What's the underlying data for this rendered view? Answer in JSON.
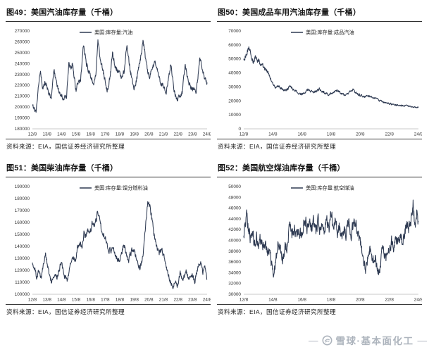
{
  "page": {
    "background": "#ffffff"
  },
  "watermark": {
    "dash_left": "—",
    "dash_right": "—",
    "logo": "xueqiu-snowball-icon",
    "text": "雪球·基本面化工",
    "color": "#a7aeb8"
  },
  "source_note": "资料来源：EIA，国信证券经济研究所整理",
  "chart_data": [
    {
      "type": "line",
      "title": "图49：美国汽油库存量（千桶）",
      "legend": "美国:库存量:汽油",
      "source": "资料来源：EIA，国信证券经济研究所整理",
      "line_color": "#2e3a52",
      "ylim": [
        180000,
        270000
      ],
      "y_step": 10000,
      "x_ticks": [
        "12/8",
        "13/8",
        "14/8",
        "15/8",
        "16/8",
        "17/8",
        "18/8",
        "19/8",
        "20/8",
        "21/8",
        "22/8",
        "23/8",
        "24/8"
      ],
      "x_tick_years": [
        0,
        1,
        2,
        3,
        4,
        5,
        6,
        7,
        8,
        9,
        10,
        11,
        12
      ],
      "noise_rel": 0.01,
      "seed": 49,
      "points": [
        [
          0,
          202000
        ],
        [
          0.12,
          199000
        ],
        [
          0.25,
          196000
        ],
        [
          0.45,
          222000
        ],
        [
          0.55,
          234000
        ],
        [
          0.7,
          217000
        ],
        [
          0.85,
          223000
        ],
        [
          1.0,
          218000
        ],
        [
          1.15,
          211000
        ],
        [
          1.3,
          209500
        ],
        [
          1.5,
          235000
        ],
        [
          1.65,
          221000
        ],
        [
          1.85,
          212000
        ],
        [
          2.0,
          211000
        ],
        [
          2.15,
          206000
        ],
        [
          2.35,
          211000
        ],
        [
          2.5,
          240000
        ],
        [
          2.65,
          233000
        ],
        [
          2.75,
          241500
        ],
        [
          2.9,
          224000
        ],
        [
          3.0,
          215500
        ],
        [
          3.1,
          221000
        ],
        [
          3.3,
          224000
        ],
        [
          3.5,
          258000
        ],
        [
          3.7,
          240000
        ],
        [
          3.9,
          231500
        ],
        [
          4.05,
          226500
        ],
        [
          4.2,
          222000
        ],
        [
          4.35,
          228000
        ],
        [
          4.5,
          259000
        ],
        [
          4.7,
          241000
        ],
        [
          4.9,
          230000
        ],
        [
          5.05,
          220000
        ],
        [
          5.15,
          216000
        ],
        [
          5.35,
          228000
        ],
        [
          5.5,
          249000
        ],
        [
          5.7,
          238000
        ],
        [
          5.9,
          232500
        ],
        [
          6.1,
          226000
        ],
        [
          6.3,
          233000
        ],
        [
          6.5,
          258000
        ],
        [
          6.7,
          235000
        ],
        [
          6.9,
          222000
        ],
        [
          7.0,
          217000
        ],
        [
          7.2,
          228000
        ],
        [
          7.45,
          247000
        ],
        [
          7.6,
          262000
        ],
        [
          7.75,
          247000
        ],
        [
          7.9,
          234000
        ],
        [
          8.05,
          227000
        ],
        [
          8.25,
          236000
        ],
        [
          8.45,
          241000
        ],
        [
          8.65,
          231000
        ],
        [
          8.85,
          221000
        ],
        [
          9.0,
          219000
        ],
        [
          9.2,
          213000
        ],
        [
          9.5,
          240000
        ],
        [
          9.7,
          218000
        ],
        [
          9.9,
          206000
        ],
        [
          10.1,
          209000
        ],
        [
          10.3,
          214000
        ],
        [
          10.5,
          240000
        ],
        [
          10.7,
          223000
        ],
        [
          10.9,
          217000
        ],
        [
          11.1,
          216000
        ],
        [
          11.25,
          213000
        ],
        [
          11.5,
          246000
        ],
        [
          11.7,
          232000
        ],
        [
          11.85,
          225000
        ],
        [
          12.0,
          223500
        ]
      ]
    },
    {
      "type": "line",
      "title": "图50：美国成品车用汽油库存量（千桶）",
      "legend": "美国:库存量:成品汽油",
      "source": "资料来源：EIA，国信证券经济研究所整理",
      "line_color": "#2e3a52",
      "ylim": [
        0,
        70000
      ],
      "y_step": 10000,
      "x_ticks": [
        "12/8",
        "14/8",
        "16/8",
        "18/8",
        "20/8",
        "22/8",
        "24/8"
      ],
      "x_tick_years": [
        0,
        2,
        4,
        6,
        8,
        10,
        12
      ],
      "noise_rel": 0.03,
      "seed": 50,
      "points": [
        [
          0,
          50000
        ],
        [
          0.15,
          52500
        ],
        [
          0.35,
          59000
        ],
        [
          0.5,
          52000
        ],
        [
          0.65,
          47500
        ],
        [
          0.8,
          51000
        ],
        [
          1.0,
          49000
        ],
        [
          1.2,
          46000
        ],
        [
          1.4,
          43500
        ],
        [
          1.6,
          41500
        ],
        [
          1.75,
          38500
        ],
        [
          1.9,
          34500
        ],
        [
          2.05,
          30500
        ],
        [
          2.2,
          29500
        ],
        [
          2.4,
          30500
        ],
        [
          2.6,
          28500
        ],
        [
          2.8,
          27500
        ],
        [
          3.0,
          28000
        ],
        [
          3.2,
          31000
        ],
        [
          3.4,
          28000
        ],
        [
          3.6,
          27000
        ],
        [
          3.8,
          25500
        ],
        [
          4.0,
          25000
        ],
        [
          4.2,
          26500
        ],
        [
          4.4,
          28500
        ],
        [
          4.6,
          27000
        ],
        [
          4.8,
          26000
        ],
        [
          5.0,
          27000
        ],
        [
          5.2,
          28500
        ],
        [
          5.4,
          26500
        ],
        [
          5.6,
          25500
        ],
        [
          5.8,
          24500
        ],
        [
          6.0,
          25500
        ],
        [
          6.2,
          27000
        ],
        [
          6.5,
          27500
        ],
        [
          6.7,
          25000
        ],
        [
          7.0,
          24000
        ],
        [
          7.2,
          25500
        ],
        [
          7.5,
          28000
        ],
        [
          7.7,
          26000
        ],
        [
          8.0,
          24000
        ],
        [
          8.3,
          23000
        ],
        [
          8.6,
          23500
        ],
        [
          9.0,
          22000
        ],
        [
          9.3,
          20500
        ],
        [
          9.6,
          19000
        ],
        [
          10.0,
          18000
        ],
        [
          10.3,
          17500
        ],
        [
          10.6,
          17000
        ],
        [
          11.0,
          16500
        ],
        [
          11.4,
          16000
        ],
        [
          11.7,
          15500
        ],
        [
          12.0,
          15500
        ]
      ]
    },
    {
      "type": "line",
      "title": "图51：美国柴油库存量（千桶）",
      "legend": "美国:库存量:馏分燃料油",
      "source": "资料来源：EIA，国信证券经济研究所整理",
      "line_color": "#2e3a52",
      "ylim": [
        100000,
        190000
      ],
      "y_step": 10000,
      "x_ticks": [
        "12/8",
        "13/8",
        "14/8",
        "15/8",
        "16/8",
        "17/8",
        "18/8",
        "19/8",
        "20/8",
        "21/8",
        "22/8",
        "23/8",
        "24/8"
      ],
      "x_tick_years": [
        0,
        1,
        2,
        3,
        4,
        5,
        6,
        7,
        8,
        9,
        10,
        11,
        12
      ],
      "noise_rel": 0.016,
      "seed": 51,
      "points": [
        [
          0,
          128000
        ],
        [
          0.15,
          121000
        ],
        [
          0.3,
          114000
        ],
        [
          0.45,
          120000
        ],
        [
          0.6,
          113000
        ],
        [
          0.75,
          125000
        ],
        [
          0.9,
          133000
        ],
        [
          1.0,
          126000
        ],
        [
          1.15,
          117000
        ],
        [
          1.3,
          111500
        ],
        [
          1.5,
          117000
        ],
        [
          1.7,
          113000
        ],
        [
          1.9,
          124000
        ],
        [
          2.0,
          127000
        ],
        [
          2.2,
          115000
        ],
        [
          2.4,
          112000
        ],
        [
          2.6,
          124000
        ],
        [
          2.8,
          131000
        ],
        [
          2.95,
          129000
        ],
        [
          3.1,
          139000
        ],
        [
          3.25,
          143000
        ],
        [
          3.4,
          138000
        ],
        [
          3.55,
          152000
        ],
        [
          3.7,
          148000
        ],
        [
          3.85,
          155000
        ],
        [
          4.0,
          153000
        ],
        [
          4.1,
          162000
        ],
        [
          4.25,
          157000
        ],
        [
          4.4,
          164000
        ],
        [
          4.5,
          170000
        ],
        [
          4.65,
          160000
        ],
        [
          4.8,
          151000
        ],
        [
          5.0,
          149000
        ],
        [
          5.2,
          139000
        ],
        [
          5.4,
          135000
        ],
        [
          5.55,
          141000
        ],
        [
          5.7,
          133000
        ],
        [
          5.9,
          127000
        ],
        [
          6.05,
          131000
        ],
        [
          6.25,
          142000
        ],
        [
          6.45,
          133000
        ],
        [
          6.6,
          127000
        ],
        [
          6.8,
          136000
        ],
        [
          7.0,
          136000
        ],
        [
          7.2,
          127000
        ],
        [
          7.4,
          122000
        ],
        [
          7.6,
          132000
        ],
        [
          7.8,
          160000
        ],
        [
          7.95,
          178000
        ],
        [
          8.1,
          172000
        ],
        [
          8.3,
          155000
        ],
        [
          8.5,
          142000
        ],
        [
          8.7,
          133000
        ],
        [
          8.9,
          138000
        ],
        [
          9.05,
          130000
        ],
        [
          9.25,
          121000
        ],
        [
          9.45,
          111000
        ],
        [
          9.65,
          107000
        ],
        [
          9.85,
          110000
        ],
        [
          9.95,
          106000
        ],
        [
          10.15,
          118000
        ],
        [
          10.35,
          113000
        ],
        [
          10.55,
          120000
        ],
        [
          10.75,
          112000
        ],
        [
          10.95,
          117000
        ],
        [
          11.15,
          110000
        ],
        [
          11.35,
          122000
        ],
        [
          11.55,
          127000
        ],
        [
          11.7,
          118000
        ],
        [
          11.85,
          123000
        ],
        [
          11.95,
          117000
        ],
        [
          12.0,
          112000
        ]
      ]
    },
    {
      "type": "line",
      "title": "图52：美国航空煤油库存量（千桶）",
      "legend": "美国:库存量:航空煤油",
      "source": "资料来源：EIA，国信证券经济研究所整理",
      "line_color": "#2e3a52",
      "ylim": [
        30000,
        50000
      ],
      "y_step": 2000,
      "x_ticks": [
        "12/8",
        "14/8",
        "16/8",
        "18/8",
        "20/8",
        "22/8",
        "24/8"
      ],
      "x_tick_years": [
        0,
        2,
        4,
        6,
        8,
        10,
        12
      ],
      "noise_rel": 0.026,
      "seed": 52,
      "points": [
        [
          0,
          41500
        ],
        [
          0.1,
          43200
        ],
        [
          0.2,
          44500
        ],
        [
          0.35,
          42000
        ],
        [
          0.5,
          40000
        ],
        [
          0.62,
          41500
        ],
        [
          0.75,
          39500
        ],
        [
          0.88,
          40500
        ],
        [
          1.0,
          39500
        ],
        [
          1.15,
          40500
        ],
        [
          1.3,
          38500
        ],
        [
          1.45,
          39500
        ],
        [
          1.6,
          37500
        ],
        [
          1.75,
          38500
        ],
        [
          1.9,
          35800
        ],
        [
          2.05,
          34300
        ],
        [
          2.25,
          37000
        ],
        [
          2.4,
          39800
        ],
        [
          2.55,
          38000
        ],
        [
          2.7,
          36500
        ],
        [
          2.85,
          38500
        ],
        [
          3.0,
          38500
        ],
        [
          3.15,
          43800
        ],
        [
          3.3,
          41500
        ],
        [
          3.45,
          42500
        ],
        [
          3.6,
          40500
        ],
        [
          3.75,
          42000
        ],
        [
          3.9,
          41000
        ],
        [
          4.05,
          42500
        ],
        [
          4.2,
          44500
        ],
        [
          4.35,
          42000
        ],
        [
          4.5,
          43500
        ],
        [
          4.65,
          41500
        ],
        [
          4.8,
          43000
        ],
        [
          4.95,
          41500
        ],
        [
          5.1,
          43500
        ],
        [
          5.25,
          42000
        ],
        [
          5.4,
          43500
        ],
        [
          5.55,
          41500
        ],
        [
          5.7,
          43800
        ],
        [
          5.85,
          42000
        ],
        [
          6.0,
          45300
        ],
        [
          6.15,
          42500
        ],
        [
          6.3,
          44000
        ],
        [
          6.45,
          41500
        ],
        [
          6.6,
          42500
        ],
        [
          6.75,
          40500
        ],
        [
          6.9,
          42000
        ],
        [
          7.05,
          41200
        ],
        [
          7.2,
          43300
        ],
        [
          7.35,
          41000
        ],
        [
          7.5,
          42500
        ],
        [
          7.65,
          43800
        ],
        [
          7.8,
          41500
        ],
        [
          7.95,
          40000
        ],
        [
          8.1,
          38500
        ],
        [
          8.25,
          35800
        ],
        [
          8.4,
          34300
        ],
        [
          8.55,
          37200
        ],
        [
          8.7,
          38500
        ],
        [
          8.85,
          36500
        ],
        [
          9.0,
          37000
        ],
        [
          9.12,
          35500
        ],
        [
          9.25,
          33800
        ],
        [
          9.4,
          36000
        ],
        [
          9.55,
          38500
        ],
        [
          9.7,
          37500
        ],
        [
          9.85,
          36500
        ],
        [
          10.0,
          38000
        ],
        [
          10.15,
          40000
        ],
        [
          10.3,
          38500
        ],
        [
          10.45,
          40500
        ],
        [
          10.6,
          39500
        ],
        [
          10.75,
          41000
        ],
        [
          10.9,
          39800
        ],
        [
          11.05,
          41500
        ],
        [
          11.2,
          43000
        ],
        [
          11.35,
          42200
        ],
        [
          11.5,
          44200
        ],
        [
          11.62,
          47200
        ],
        [
          11.72,
          44000
        ],
        [
          11.82,
          42500
        ],
        [
          11.9,
          45000
        ],
        [
          12.0,
          43000
        ]
      ]
    }
  ]
}
